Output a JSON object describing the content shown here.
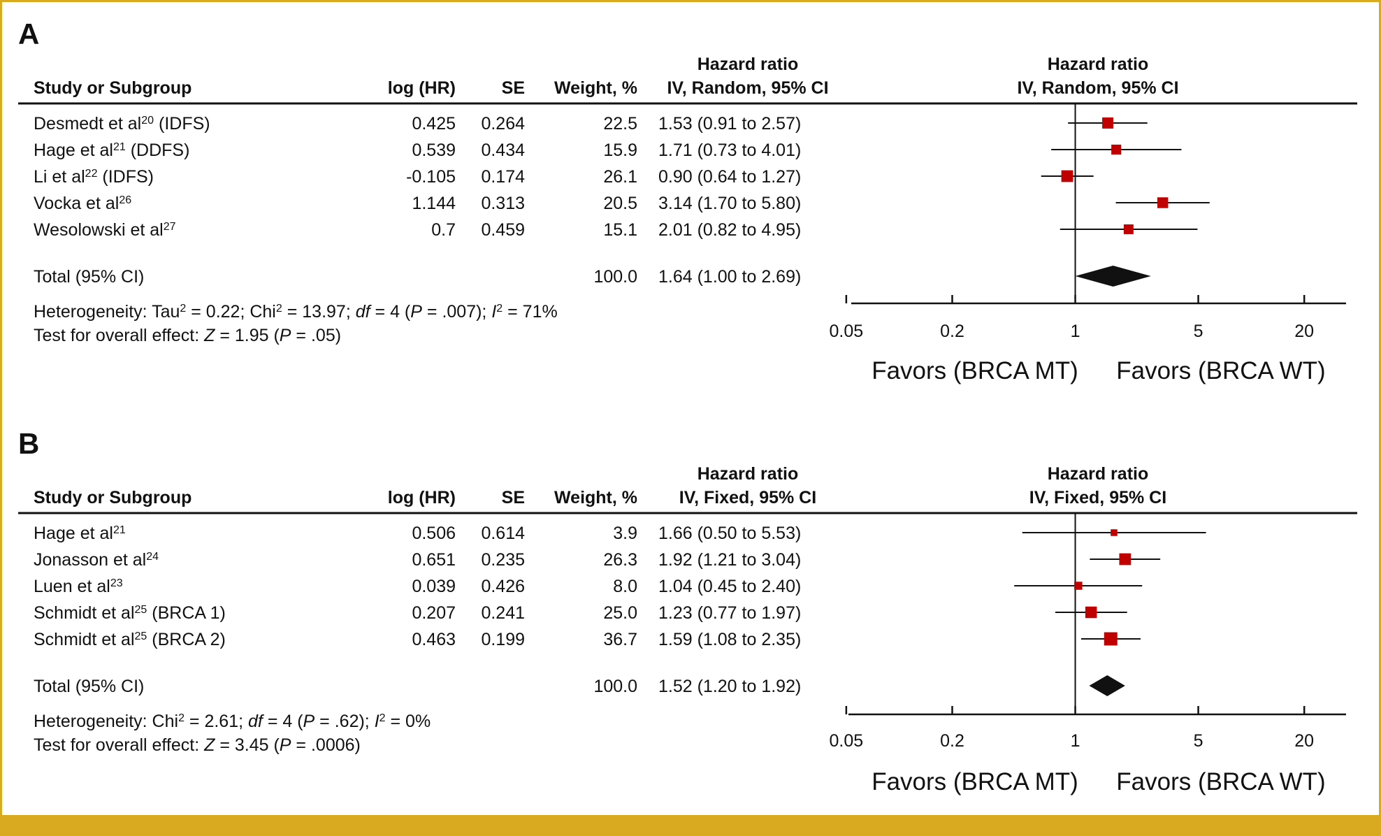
{
  "accent_color": "#d9a920",
  "marker_color": "#c00000",
  "panels": [
    {
      "letter": "A",
      "headers": {
        "study": "Study or Subgroup",
        "loghr": "log (HR)",
        "se": "SE",
        "weight": "Weight, %",
        "hr_line1": "Hazard ratio",
        "hr_line2": "IV, Random, 95% CI",
        "plot_line1": "Hazard ratio",
        "plot_line2": "IV, Random, 95% CI"
      },
      "studies": [
        {
          "name": "Desmedt et al",
          "ref": "20",
          "suffix": " (IDFS)",
          "loghr": "0.425",
          "se": "0.264",
          "weight": "22.5",
          "ci_text": "1.53 (0.91 to 2.57)"
        },
        {
          "name": "Hage et al",
          "ref": "21",
          "suffix": " (DDFS)",
          "loghr": "0.539",
          "se": "0.434",
          "weight": "15.9",
          "ci_text": "1.71 (0.73 to 4.01)"
        },
        {
          "name": "Li et al",
          "ref": "22",
          "suffix": " (IDFS)",
          "loghr": "-0.105",
          "se": "0.174",
          "weight": "26.1",
          "ci_text": "0.90 (0.64 to 1.27)"
        },
        {
          "name": "Vocka et al",
          "ref": "26",
          "suffix": "",
          "loghr": "1.144",
          "se": "0.313",
          "weight": "20.5",
          "ci_text": "3.14 (1.70 to 5.80)"
        },
        {
          "name": "Wesolowski et al",
          "ref": "27",
          "suffix": "",
          "loghr": "0.7",
          "se": "0.459",
          "weight": "15.1",
          "ci_text": "2.01 (0.82 to 4.95)"
        }
      ],
      "total": {
        "label": "Total (95% CI)",
        "weight": "100.0",
        "ci_text": "1.64 (1.00 to 2.69)"
      },
      "heterogeneity": [
        {
          "t": "Heterogeneity: Tau"
        },
        {
          "t": "2",
          "sup": true
        },
        {
          "t": " = 0.22; Chi"
        },
        {
          "t": "2",
          "sup": true
        },
        {
          "t": " = 13.97; "
        },
        {
          "t": "df",
          "it": true
        },
        {
          "t": " = 4 ("
        },
        {
          "t": "P",
          "it": true
        },
        {
          "t": " = .007); "
        },
        {
          "t": "I",
          "it": true
        },
        {
          "t": "2",
          "sup": true
        },
        {
          "t": " = 71%"
        }
      ],
      "overall": [
        {
          "t": "Test for overall effect: "
        },
        {
          "t": "Z",
          "it": true
        },
        {
          "t": " = 1.95 ("
        },
        {
          "t": "P",
          "it": true
        },
        {
          "t": " = .05)"
        }
      ],
      "favors_left": "Favors (BRCA MT)",
      "favors_right": "Favors (BRCA WT)"
    },
    {
      "letter": "B",
      "headers": {
        "study": "Study or Subgroup",
        "loghr": "log (HR)",
        "se": "SE",
        "weight": "Weight, %",
        "hr_line1": "Hazard ratio",
        "hr_line2": "IV, Fixed, 95% CI",
        "plot_line1": "Hazard ratio",
        "plot_line2": "IV, Fixed, 95% CI"
      },
      "studies": [
        {
          "name": "Hage et al",
          "ref": "21",
          "suffix": "",
          "loghr": "0.506",
          "se": "0.614",
          "weight": "3.9",
          "ci_text": "1.66 (0.50 to 5.53)"
        },
        {
          "name": "Jonasson et al",
          "ref": "24",
          "suffix": "",
          "loghr": "0.651",
          "se": "0.235",
          "weight": "26.3",
          "ci_text": "1.92 (1.21 to 3.04)"
        },
        {
          "name": "Luen et al",
          "ref": "23",
          "suffix": "",
          "loghr": "0.039",
          "se": "0.426",
          "weight": "8.0",
          "ci_text": "1.04 (0.45 to 2.40)"
        },
        {
          "name": "Schmidt et al",
          "ref": "25",
          "suffix": " (BRCA 1)",
          "loghr": "0.207",
          "se": "0.241",
          "weight": "25.0",
          "ci_text": "1.23 (0.77 to 1.97)"
        },
        {
          "name": "Schmidt et al",
          "ref": "25",
          "suffix": " (BRCA 2)",
          "loghr": "0.463",
          "se": "0.199",
          "weight": "36.7",
          "ci_text": "1.59 (1.08 to 2.35)"
        }
      ],
      "total": {
        "label": "Total (95% CI)",
        "weight": "100.0",
        "ci_text": "1.52 (1.20 to 1.92)"
      },
      "heterogeneity": [
        {
          "t": "Heterogeneity: Chi"
        },
        {
          "t": "2",
          "sup": true
        },
        {
          "t": " = 2.61; "
        },
        {
          "t": "df",
          "it": true
        },
        {
          "t": " = 4 ("
        },
        {
          "t": "P",
          "it": true
        },
        {
          "t": " = .62); "
        },
        {
          "t": "I",
          "it": true
        },
        {
          "t": "2",
          "sup": true
        },
        {
          "t": " = 0%"
        }
      ],
      "overall": [
        {
          "t": "Test for overall effect: "
        },
        {
          "t": "Z",
          "it": true
        },
        {
          "t": " = 3.45 ("
        },
        {
          "t": "P",
          "it": true
        },
        {
          "t": " = .0006)"
        }
      ],
      "favors_left": "Favors (BRCA MT)",
      "favors_right": "Favors (BRCA WT)"
    }
  ],
  "chart_data": [
    {
      "type": "forest",
      "model": "random",
      "x_scale": "log",
      "x_ticks": [
        "0.05",
        "0.2",
        "1",
        "5",
        "20"
      ],
      "xlim": [
        0.03,
        40
      ],
      "reference_line": 1,
      "series": [
        {
          "study": "Desmedt et al (IDFS)",
          "hr": 1.53,
          "lower": 0.91,
          "upper": 2.57,
          "weight": 22.5
        },
        {
          "study": "Hage et al (DDFS)",
          "hr": 1.71,
          "lower": 0.73,
          "upper": 4.01,
          "weight": 15.9
        },
        {
          "study": "Li et al (IDFS)",
          "hr": 0.9,
          "lower": 0.64,
          "upper": 1.27,
          "weight": 26.1
        },
        {
          "study": "Vocka et al",
          "hr": 3.14,
          "lower": 1.7,
          "upper": 5.8,
          "weight": 20.5
        },
        {
          "study": "Wesolowski et al",
          "hr": 2.01,
          "lower": 0.82,
          "upper": 4.95,
          "weight": 15.1
        }
      ],
      "pooled": {
        "hr": 1.64,
        "lower": 1.0,
        "upper": 2.69
      }
    },
    {
      "type": "forest",
      "model": "fixed",
      "x_scale": "log",
      "x_ticks": [
        "0.05",
        "0.2",
        "1",
        "5",
        "20"
      ],
      "xlim": [
        0.03,
        40
      ],
      "reference_line": 1,
      "series": [
        {
          "study": "Hage et al",
          "hr": 1.66,
          "lower": 0.5,
          "upper": 5.53,
          "weight": 3.9
        },
        {
          "study": "Jonasson et al",
          "hr": 1.92,
          "lower": 1.21,
          "upper": 3.04,
          "weight": 26.3
        },
        {
          "study": "Luen et al",
          "hr": 1.04,
          "lower": 0.45,
          "upper": 2.4,
          "weight": 8.0
        },
        {
          "study": "Schmidt et al (BRCA 1)",
          "hr": 1.23,
          "lower": 0.77,
          "upper": 1.97,
          "weight": 25.0
        },
        {
          "study": "Schmidt et al (BRCA 2)",
          "hr": 1.59,
          "lower": 1.08,
          "upper": 2.35,
          "weight": 36.7
        }
      ],
      "pooled": {
        "hr": 1.52,
        "lower": 1.2,
        "upper": 1.92
      }
    }
  ]
}
